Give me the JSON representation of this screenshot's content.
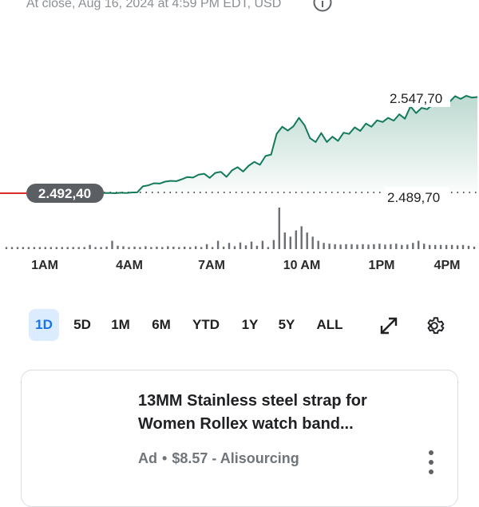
{
  "header": {
    "status_text": "At close, Aug 16, 2024 at 4:59 PM EDT, USD"
  },
  "chart_data": {
    "type": "line",
    "x_tick_labels": [
      "1AM",
      "4AM",
      "7AM",
      "10 AM",
      "1PM",
      "4PM"
    ],
    "previous_close": "2.492,40",
    "current_value": "2.547,70",
    "low_label": "2.489,70",
    "line_color": "#137a5b",
    "previous_close_color": "#d93025",
    "series": [
      {
        "values": [
          2492.0,
          2492.1,
          2491.9,
          2492.2,
          2492.0,
          2492.3,
          2492.4,
          2495.9,
          2496.5,
          2497.7,
          2497.5,
          2498.6,
          2499.1,
          2498.9,
          2500.0,
          2501.3,
          2501.0,
          2502.7,
          2503.2,
          2500.8,
          2503.7,
          2504.3,
          2501.4,
          2505.2,
          2507.0,
          2504.5,
          2507.9,
          2510.1,
          2508.4,
          2513.5,
          2514.3,
          2526.3,
          2530.5,
          2528.2,
          2530.7,
          2535.6,
          2531.3,
          2523.8,
          2521.6,
          2526.8,
          2521.6,
          2524.7,
          2522.3,
          2527.0,
          2526.3,
          2530.1,
          2528.0,
          2532.3,
          2530.5,
          2534.2,
          2533.2,
          2535.6,
          2534.0,
          2537.7,
          2535.1,
          2542.3,
          2538.4,
          2541.4,
          2540.6,
          2543.4,
          2542.5,
          2545.8,
          2544.9,
          2548.2,
          2546.6,
          2548.4,
          2547.4,
          2547.7
        ]
      }
    ],
    "volume_bars": [
      0.05,
      0.05,
      0.05,
      0.05,
      0.05,
      0.05,
      0.05,
      0.05,
      0.05,
      0.05,
      0.05,
      0.05,
      0.05,
      0.05,
      0.05,
      0.1,
      0.05,
      0.05,
      0.06,
      0.2,
      0.08,
      0.07,
      0.05,
      0.06,
      0.05,
      0.07,
      0.05,
      0.06,
      0.05,
      0.07,
      0.06,
      0.05,
      0.06,
      0.05,
      0.07,
      0.05,
      0.12,
      0.05,
      0.2,
      0.06,
      0.15,
      0.07,
      0.16,
      0.09,
      0.18,
      0.08,
      0.2,
      0.05,
      0.22,
      1.0,
      0.4,
      0.3,
      0.45,
      0.55,
      0.4,
      0.3,
      0.2,
      0.15,
      0.13,
      0.12,
      0.11,
      0.12,
      0.12,
      0.11,
      0.12,
      0.11,
      0.12,
      0.13,
      0.11,
      0.12,
      0.13,
      0.1,
      0.11,
      0.15,
      0.2,
      0.13,
      0.1,
      0.1,
      0.1,
      0.1,
      0.1,
      0.09,
      0.1,
      0.08,
      0.06
    ]
  },
  "range_tabs": [
    {
      "label": "1D",
      "active": true
    },
    {
      "label": "5D",
      "active": false
    },
    {
      "label": "1M",
      "active": false
    },
    {
      "label": "6M",
      "active": false
    },
    {
      "label": "YTD",
      "active": false
    },
    {
      "label": "1Y",
      "active": false
    },
    {
      "label": "5Y",
      "active": false
    },
    {
      "label": "ALL",
      "active": false
    }
  ],
  "toolbar_icons": {
    "expand": "expand-icon",
    "settings": "gear-icon"
  },
  "ad": {
    "title": "13MM Stainless steel strap for Women Rollex watch band...",
    "badge": "Ad",
    "separator": "•",
    "price": "$8.57",
    "dash": "-",
    "seller": "Alisourcing"
  },
  "colors": {
    "accent": "#1a73e8",
    "active_tab_bg": "#dcecff",
    "line": "#137a5b",
    "previous_close_line": "#d93025",
    "text_secondary": "#70757a"
  }
}
